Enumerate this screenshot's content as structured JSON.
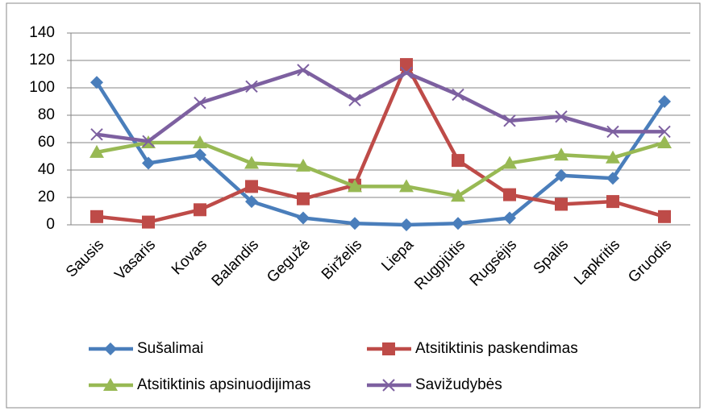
{
  "chart_data": {
    "type": "line",
    "categories": [
      "Sausis",
      "Vasaris",
      "Kovas",
      "Balandis",
      "Gegužė",
      "Birželis",
      "Liepa",
      "Rugpjūtis",
      "Rugsėjis",
      "Spalis",
      "Lapkritis",
      "Gruodis"
    ],
    "series": [
      {
        "name": "Sušalimai",
        "color": "#4a7ebb",
        "marker": "diamond",
        "values": [
          104,
          45,
          51,
          17,
          5,
          1,
          0,
          1,
          5,
          36,
          34,
          90
        ]
      },
      {
        "name": "Atsitiktinis paskendimas",
        "color": "#be4b48",
        "marker": "square",
        "values": [
          6,
          2,
          11,
          28,
          19,
          29,
          117,
          47,
          22,
          15,
          17,
          6
        ]
      },
      {
        "name": "Atsitiktinis apsinuodijimas",
        "color": "#98b954",
        "marker": "triangle",
        "values": [
          53,
          60,
          60,
          45,
          43,
          28,
          28,
          21,
          45,
          51,
          49,
          60
        ]
      },
      {
        "name": "Savižudybės",
        "color": "#7d60a0",
        "marker": "x",
        "values": [
          66,
          61,
          89,
          101,
          113,
          91,
          111,
          95,
          76,
          79,
          68,
          68
        ]
      }
    ],
    "ylim": [
      0,
      140
    ],
    "yticks": [
      0,
      20,
      40,
      60,
      80,
      100,
      120,
      140
    ],
    "grid": true,
    "legend": "bottom"
  }
}
